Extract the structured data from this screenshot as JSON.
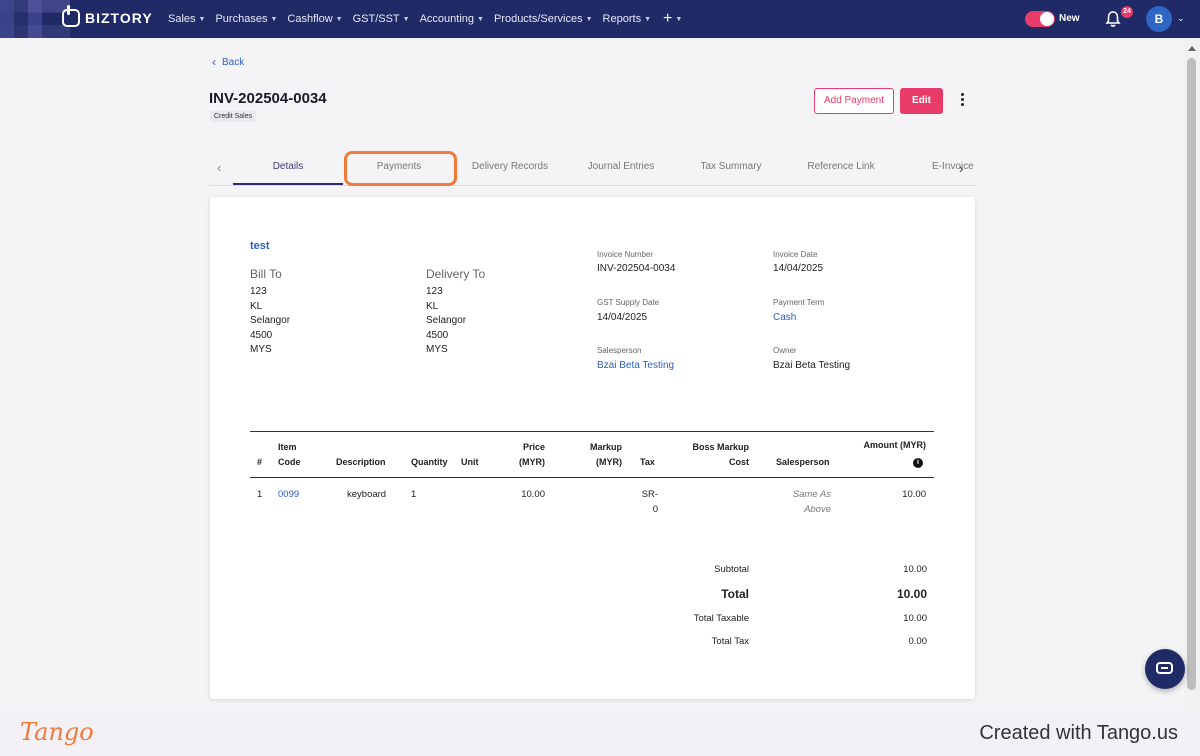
{
  "nav": {
    "brand": "BIZTORY",
    "menu": [
      {
        "label": "Sales"
      },
      {
        "label": "Purchases"
      },
      {
        "label": "Cashflow"
      },
      {
        "label": "GST/SST"
      },
      {
        "label": "Accounting"
      },
      {
        "label": "Products/Services"
      },
      {
        "label": "Reports"
      }
    ],
    "plus": "+",
    "toggle_label": "New",
    "notification_count": "24",
    "avatar_initial": "B",
    "accent_color": "#e83b6a",
    "nav_bg": "#1f2a66"
  },
  "header": {
    "back_label": "Back",
    "invoice_title": "INV-202504-0034",
    "chip": "Credit Sales",
    "add_payment_label": "Add Payment",
    "edit_label": "Edit"
  },
  "tabs": [
    {
      "label": "Details"
    },
    {
      "label": "Payments"
    },
    {
      "label": "Delivery Records"
    },
    {
      "label": "Journal Entries"
    },
    {
      "label": "Tax Summary"
    },
    {
      "label": "Reference Link"
    },
    {
      "label": "E-Invoice"
    }
  ],
  "invoice": {
    "customer_name": "test",
    "bill_to": {
      "title": "Bill To",
      "lines": [
        "123",
        "KL",
        "Selangor",
        "4500",
        "MYS"
      ]
    },
    "delivery_to": {
      "title": "Delivery To",
      "lines": [
        "123",
        "KL",
        "Selangor",
        "4500",
        "MYS"
      ]
    },
    "fields": {
      "invoice_number": {
        "label": "Invoice Number",
        "value": "INV-202504-0034"
      },
      "invoice_date": {
        "label": "Invoice Date",
        "value": "14/04/2025"
      },
      "gst_supply_date": {
        "label": "GST Supply Date",
        "value": "14/04/2025"
      },
      "payment_term": {
        "label": "Payment Term",
        "value": "Cash"
      },
      "salesperson": {
        "label": "Salesperson",
        "value": "Bzai Beta Testing"
      },
      "owner": {
        "label": "Owner",
        "value": "Bzai Beta Testing"
      }
    }
  },
  "table": {
    "headers": {
      "num": "#",
      "item_code_1": "Item",
      "item_code_2": "Code",
      "description": "Description",
      "quantity": "Quantity",
      "unit": "Unit",
      "price_1": "Price",
      "price_2": "(MYR)",
      "markup_1": "Markup",
      "markup_2": "(MYR)",
      "tax": "Tax",
      "boss_1": "Boss Markup",
      "boss_2": "Cost",
      "salesperson": "Salesperson",
      "amount": "Amount (MYR)"
    },
    "rows": [
      {
        "num": "1",
        "item_code": "0099",
        "description": "keyboard",
        "quantity": "1",
        "unit": "",
        "price": "10.00",
        "markup": "",
        "tax_1": "SR-",
        "tax_2": "0",
        "boss_markup_cost": "",
        "salesperson_1": "Same As",
        "salesperson_2": "Above",
        "amount": "10.00"
      }
    ]
  },
  "totals": {
    "subtotal": {
      "label": "Subtotal",
      "value": "10.00"
    },
    "total": {
      "label": "Total",
      "value": "10.00"
    },
    "total_taxable": {
      "label": "Total Taxable",
      "value": "10.00"
    },
    "total_tax": {
      "label": "Total Tax",
      "value": "0.00"
    }
  },
  "footer": {
    "logo": "Tango",
    "created": "Created with Tango.us"
  }
}
